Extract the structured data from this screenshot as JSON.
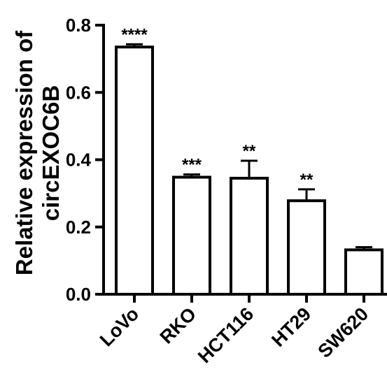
{
  "chart_data": {
    "type": "bar",
    "categories": [
      "LoVo",
      "RKO",
      "HCT116",
      "HT29",
      "SW620"
    ],
    "values": [
      0.735,
      0.348,
      0.345,
      0.278,
      0.132
    ],
    "errors": [
      0.008,
      0.008,
      0.052,
      0.034,
      0.008
    ],
    "significance": [
      "****",
      "***",
      "**",
      "**",
      ""
    ],
    "ylabel_lines": [
      "Relative expression of",
      "circEXOC6B"
    ],
    "ylim": [
      0,
      0.8
    ],
    "yticks": [
      "0.0",
      "0.2",
      "0.4",
      "0.6",
      "0.8"
    ],
    "grid": false
  }
}
